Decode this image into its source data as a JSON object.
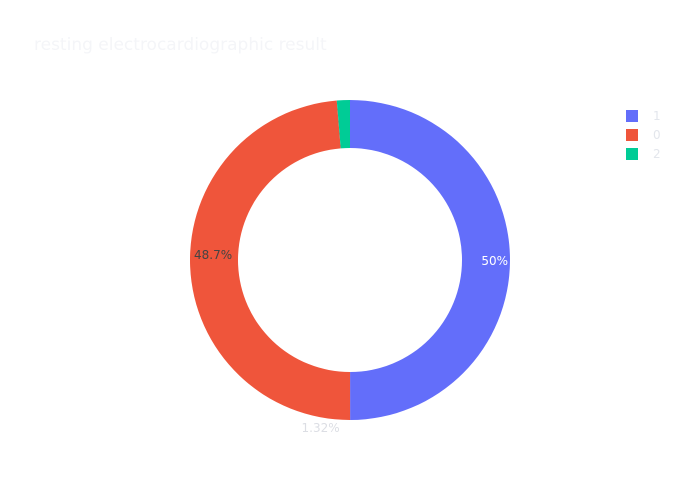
{
  "chart_data": {
    "type": "pie",
    "hole": true,
    "title": "resting electrocardiographic result",
    "categories": [
      "1",
      "0",
      "2"
    ],
    "values": [
      50,
      48.7,
      1.32
    ],
    "labels": [
      "50%",
      "48.7%",
      "1.32%"
    ],
    "colors": [
      "#636efa",
      "#ef553b",
      "#00cc96"
    ],
    "label_colors": [
      "#ffffff",
      "#444444",
      "#dcdee4"
    ],
    "legend": "top-right"
  }
}
